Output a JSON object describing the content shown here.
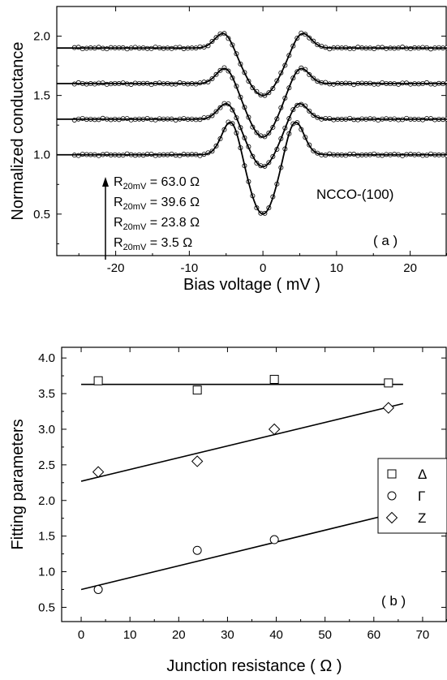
{
  "chart_data": [
    {
      "type": "line",
      "panel_label": "( a )",
      "xlabel": "Bias voltage ( mV )",
      "ylabel": "Normalized conductance",
      "xlim": [
        -28,
        25
      ],
      "ylim": [
        0.15,
        2.25
      ],
      "xticks": [
        -20,
        -10,
        0,
        10,
        20
      ],
      "yticks": [
        0.5,
        1.0,
        1.5,
        2.0
      ],
      "sample_label": "NCCO-(100)",
      "resistance_labels": [
        {
          "prefix": "R",
          "sub": "20mV",
          "value": " = 63.0 Ω"
        },
        {
          "prefix": "R",
          "sub": "20mV",
          "value": " = 39.6 Ω"
        },
        {
          "prefix": "R",
          "sub": "20mV",
          "value": " = 23.8 Ω"
        },
        {
          "prefix": "R",
          "sub": "20mV",
          "value": " =   3.5 Ω"
        }
      ],
      "curves": [
        {
          "baseline": 1.9,
          "min": 1.5,
          "peak_height": 0.15,
          "peak_x": 5.2,
          "dip_width": 2.3
        },
        {
          "baseline": 1.6,
          "min": 1.15,
          "peak_height": 0.15,
          "peak_x": 5.0,
          "dip_width": 2.1
        },
        {
          "baseline": 1.3,
          "min": 0.9,
          "peak_height": 0.15,
          "peak_x": 4.8,
          "dip_width": 2.0
        },
        {
          "baseline": 1.0,
          "min": 0.5,
          "peak_height": 0.3,
          "peak_x": 4.3,
          "dip_width": 1.8
        }
      ]
    },
    {
      "type": "scatter",
      "panel_label": "( b )",
      "xlabel": "Junction resistance ( Ω )",
      "ylabel": "Fitting parameters",
      "xlim": [
        -4,
        75
      ],
      "ylim": [
        0.3,
        4.15
      ],
      "xticks": [
        0,
        10,
        20,
        30,
        40,
        50,
        60,
        70
      ],
      "yticks": [
        0.5,
        1.0,
        1.5,
        2.0,
        2.5,
        3.0,
        3.5,
        4.0
      ],
      "legend_position": "right",
      "series": [
        {
          "name": "Δ",
          "marker": "square",
          "x": [
            3.5,
            23.8,
            39.6,
            63.0
          ],
          "y": [
            3.68,
            3.55,
            3.7,
            3.65
          ],
          "fit": [
            [
              0,
              3.63
            ],
            [
              66,
              3.63
            ]
          ]
        },
        {
          "name": "Γ",
          "marker": "circle",
          "x": [
            3.5,
            23.8,
            39.6,
            63.0
          ],
          "y": [
            0.75,
            1.3,
            1.45,
            1.75
          ],
          "fit": [
            [
              0,
              0.75
            ],
            [
              66,
              1.85
            ]
          ]
        },
        {
          "name": "Z",
          "marker": "diamond",
          "x": [
            3.5,
            23.8,
            39.6,
            63.0
          ],
          "y": [
            2.4,
            2.55,
            3.0,
            3.3
          ],
          "fit": [
            [
              0,
              2.27
            ],
            [
              66,
              3.36
            ]
          ]
        }
      ]
    }
  ]
}
